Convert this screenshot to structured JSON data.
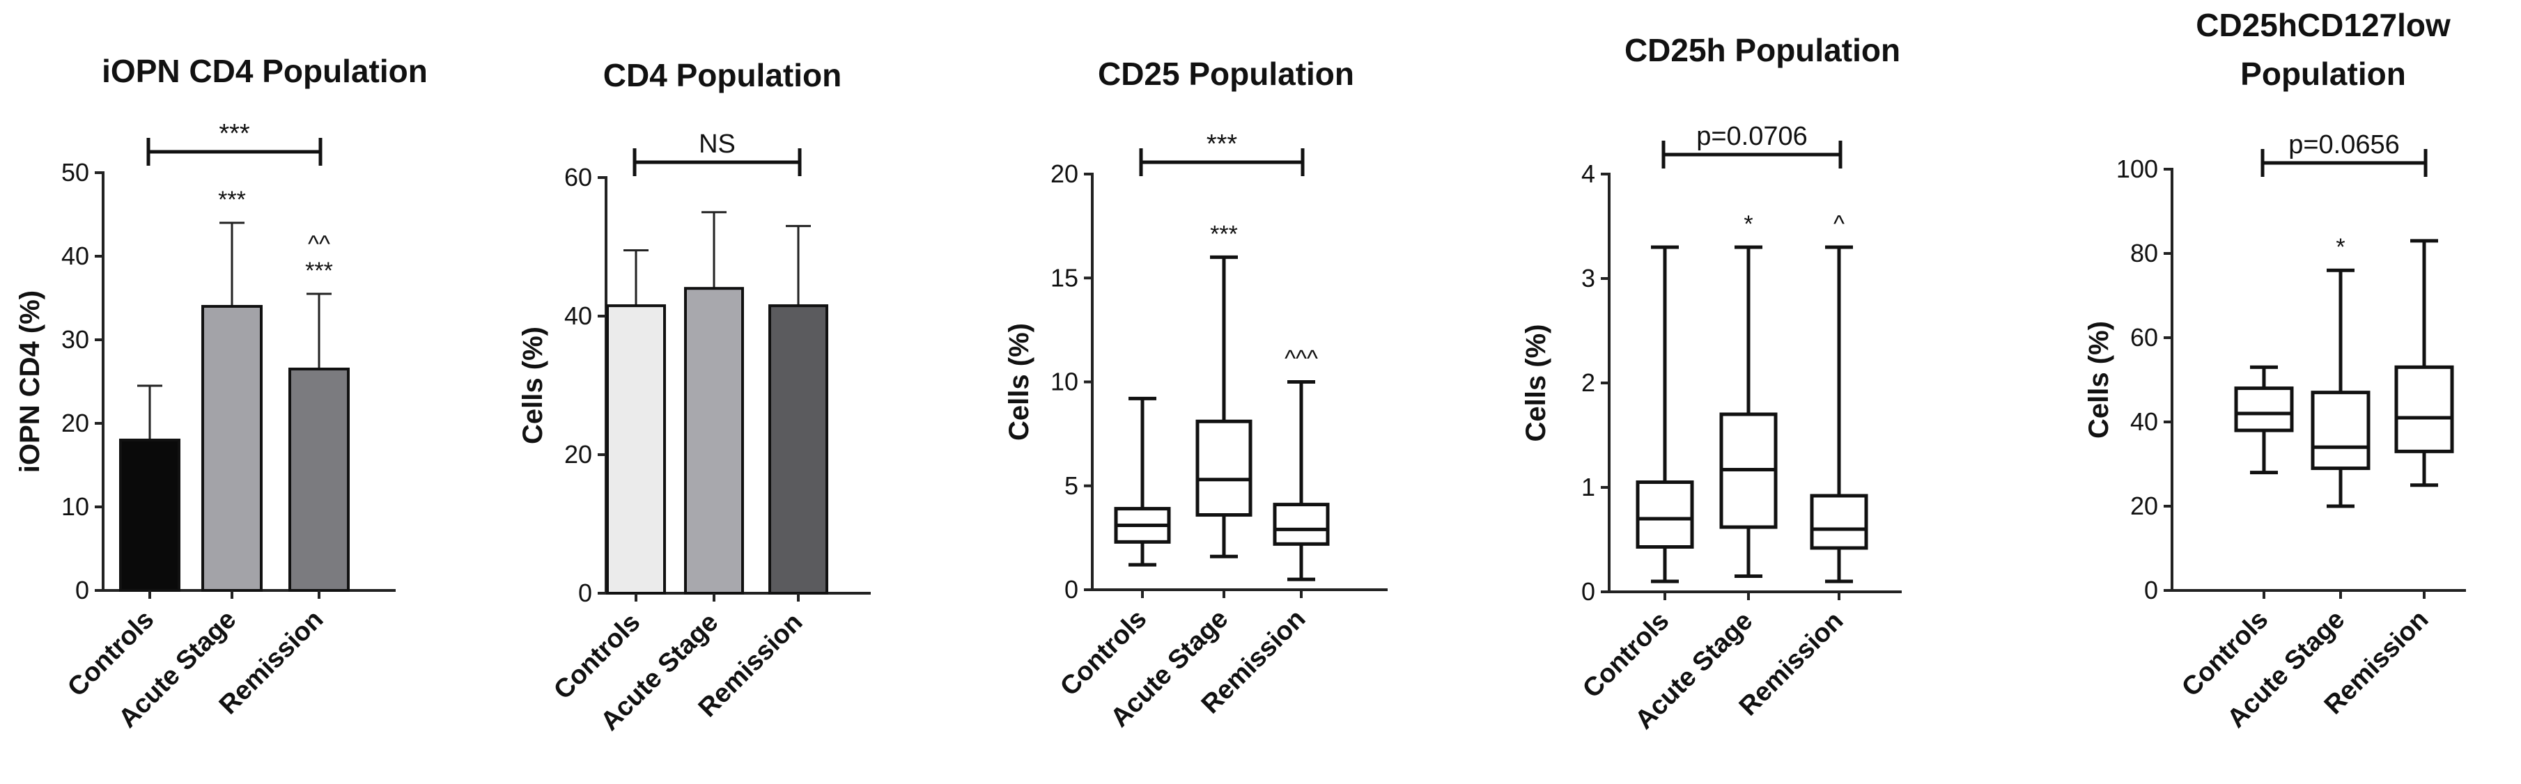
{
  "chart_data": [
    {
      "type": "bar",
      "title": [
        "iOPN CD4 Population"
      ],
      "ylabel": "iOPN CD4 (%)",
      "ylim": [
        0,
        50
      ],
      "yticks": [
        0,
        10,
        20,
        30,
        40,
        50
      ],
      "categories": [
        "Controls",
        "Acute Stage",
        "Remission"
      ],
      "values": [
        18,
        34,
        26.5
      ],
      "errors": [
        24.5,
        44,
        35.5
      ],
      "fills": [
        "#0a0a0a",
        "#a3a3a8",
        "#7b7b7f"
      ],
      "significance": [
        [],
        [
          "***"
        ],
        [
          "^^",
          "***"
        ]
      ],
      "bracket_label": "***"
    },
    {
      "type": "bar",
      "title": [
        "CD4 Population"
      ],
      "ylabel": "Cells (%)",
      "ylim": [
        0,
        60
      ],
      "yticks": [
        0,
        20,
        40,
        60
      ],
      "categories": [
        "Controls",
        "Acute Stage",
        "Remission"
      ],
      "values": [
        41.5,
        44,
        41.5
      ],
      "errors": [
        49.5,
        55,
        53
      ],
      "fills": [
        "#ebebeb",
        "#a8a8ad",
        "#5b5b5e"
      ],
      "significance": [
        [],
        [],
        []
      ],
      "bracket_label": "NS"
    },
    {
      "type": "box",
      "title": [
        "CD25 Population"
      ],
      "ylabel": "Cells (%)",
      "ylim": [
        0,
        20
      ],
      "yticks": [
        0,
        5,
        10,
        15,
        20
      ],
      "categories": [
        "Controls",
        "Acute Stage",
        "Remission"
      ],
      "boxes": [
        {
          "min": 1.2,
          "q1": 2.3,
          "median": 3.1,
          "q3": 3.9,
          "max": 9.2
        },
        {
          "min": 1.6,
          "q1": 3.6,
          "median": 5.3,
          "q3": 8.1,
          "max": 16
        },
        {
          "min": 0.5,
          "q1": 2.2,
          "median": 2.9,
          "q3": 4.1,
          "max": 10
        }
      ],
      "significance": [
        [],
        [
          "***"
        ],
        [
          "^^^"
        ]
      ],
      "bracket_label": "***"
    },
    {
      "type": "box",
      "title": [
        "CD25h Population"
      ],
      "ylabel": "Cells (%)",
      "ylim": [
        0,
        4
      ],
      "yticks": [
        0,
        1,
        2,
        3,
        4
      ],
      "categories": [
        "Controls",
        "Acute Stage",
        "Remission"
      ],
      "boxes": [
        {
          "min": 0.1,
          "q1": 0.43,
          "median": 0.7,
          "q3": 1.05,
          "max": 3.3
        },
        {
          "min": 0.15,
          "q1": 0.62,
          "median": 1.17,
          "q3": 1.7,
          "max": 3.3
        },
        {
          "min": 0.1,
          "q1": 0.42,
          "median": 0.6,
          "q3": 0.92,
          "max": 3.3
        }
      ],
      "significance": [
        [],
        [
          "*"
        ],
        [
          "^"
        ]
      ],
      "bracket_label": "p=0.0706"
    },
    {
      "type": "box",
      "title": [
        "CD25hCD127low",
        "Population"
      ],
      "ylabel": "Cells (%)",
      "ylim": [
        0,
        100
      ],
      "yticks": [
        0,
        20,
        40,
        60,
        80,
        100
      ],
      "categories": [
        "Controls",
        "Acute Stage",
        "Remission"
      ],
      "boxes": [
        {
          "min": 28,
          "q1": 38,
          "median": 42,
          "q3": 48,
          "max": 53
        },
        {
          "min": 20,
          "q1": 29,
          "median": 34,
          "q3": 47,
          "max": 76
        },
        {
          "min": 25,
          "q1": 33,
          "median": 41,
          "q3": 53,
          "max": 83
        }
      ],
      "significance": [
        [],
        [
          "*"
        ],
        []
      ],
      "bracket_label": "p=0.0656"
    }
  ]
}
